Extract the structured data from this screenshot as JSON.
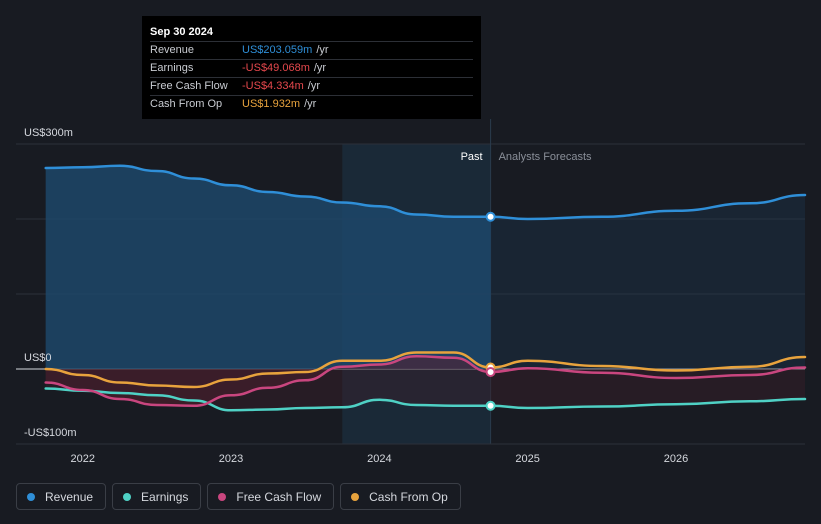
{
  "tooltip": {
    "date": "Sep 30 2024",
    "rows": [
      {
        "label": "Revenue",
        "value": "US$203.059m",
        "unit": "/yr",
        "color": "#2f8fd8"
      },
      {
        "label": "Earnings",
        "value": "-US$49.068m",
        "unit": "/yr",
        "color": "#e5484d"
      },
      {
        "label": "Free Cash Flow",
        "value": "-US$4.334m",
        "unit": "/yr",
        "color": "#e5484d"
      },
      {
        "label": "Cash From Op",
        "value": "US$1.932m",
        "unit": "/yr",
        "color": "#e8a33d"
      }
    ]
  },
  "labels": {
    "past": "Past",
    "forecast": "Analysts Forecasts"
  },
  "legend": [
    {
      "label": "Revenue",
      "color": "#2f8fd8"
    },
    {
      "label": "Earnings",
      "color": "#4fd1c5"
    },
    {
      "label": "Free Cash Flow",
      "color": "#c9467f"
    },
    {
      "label": "Cash From Op",
      "color": "#e8a33d"
    }
  ],
  "chart_data": {
    "type": "line",
    "y_ticks": [
      {
        "value": 300,
        "label": "US$300m"
      },
      {
        "value": 0,
        "label": "US$0"
      },
      {
        "value": -100,
        "label": "-US$100m"
      }
    ],
    "x_ticks": [
      {
        "value": 2022,
        "label": "2022"
      },
      {
        "value": 2023,
        "label": "2023"
      },
      {
        "value": 2024,
        "label": "2024"
      },
      {
        "value": 2025,
        "label": "2025"
      },
      {
        "value": 2026,
        "label": "2026"
      }
    ],
    "xlim": [
      2021.55,
      2026.87
    ],
    "ylim": [
      -100,
      300
    ],
    "divider_x": 2024.75,
    "shade_start_x": 2023.75,
    "series": [
      {
        "name": "Revenue",
        "color": "#2f8fd8",
        "data": [
          [
            2021.75,
            268
          ],
          [
            2022.0,
            269
          ],
          [
            2022.25,
            271
          ],
          [
            2022.5,
            264
          ],
          [
            2022.75,
            254
          ],
          [
            2023.0,
            245
          ],
          [
            2023.25,
            236
          ],
          [
            2023.5,
            230
          ],
          [
            2023.75,
            222
          ],
          [
            2024.0,
            217
          ],
          [
            2024.25,
            206
          ],
          [
            2024.5,
            203
          ],
          [
            2024.75,
            203
          ],
          [
            2025.0,
            200
          ],
          [
            2025.5,
            203
          ],
          [
            2026.0,
            211
          ],
          [
            2026.5,
            221
          ],
          [
            2026.87,
            232
          ]
        ]
      },
      {
        "name": "Earnings",
        "color": "#4fd1c5",
        "data": [
          [
            2021.75,
            -26
          ],
          [
            2022.0,
            -29
          ],
          [
            2022.25,
            -32
          ],
          [
            2022.5,
            -35
          ],
          [
            2022.75,
            -42
          ],
          [
            2023.0,
            -55
          ],
          [
            2023.25,
            -54
          ],
          [
            2023.5,
            -52
          ],
          [
            2023.75,
            -51
          ],
          [
            2024.0,
            -41
          ],
          [
            2024.25,
            -48
          ],
          [
            2024.5,
            -49
          ],
          [
            2024.75,
            -49
          ],
          [
            2025.0,
            -52
          ],
          [
            2025.5,
            -50
          ],
          [
            2026.0,
            -47
          ],
          [
            2026.5,
            -43
          ],
          [
            2026.87,
            -40
          ]
        ]
      },
      {
        "name": "Free Cash Flow",
        "color": "#c9467f",
        "data": [
          [
            2021.75,
            -18
          ],
          [
            2022.0,
            -28
          ],
          [
            2022.25,
            -40
          ],
          [
            2022.5,
            -48
          ],
          [
            2022.75,
            -49
          ],
          [
            2023.0,
            -35
          ],
          [
            2023.25,
            -25
          ],
          [
            2023.5,
            -15
          ],
          [
            2023.75,
            3
          ],
          [
            2024.0,
            6
          ],
          [
            2024.25,
            17
          ],
          [
            2024.5,
            15
          ],
          [
            2024.75,
            -4
          ],
          [
            2025.0,
            1
          ],
          [
            2025.5,
            -5
          ],
          [
            2026.0,
            -12
          ],
          [
            2026.5,
            -8
          ],
          [
            2026.87,
            2
          ]
        ]
      },
      {
        "name": "Cash From Op",
        "color": "#e8a33d",
        "data": [
          [
            2021.75,
            0
          ],
          [
            2022.0,
            -8
          ],
          [
            2022.25,
            -18
          ],
          [
            2022.5,
            -22
          ],
          [
            2022.75,
            -24
          ],
          [
            2023.0,
            -14
          ],
          [
            2023.25,
            -6
          ],
          [
            2023.5,
            -4
          ],
          [
            2023.75,
            11
          ],
          [
            2024.0,
            11
          ],
          [
            2024.25,
            22
          ],
          [
            2024.5,
            22
          ],
          [
            2024.75,
            2
          ],
          [
            2025.0,
            11
          ],
          [
            2025.5,
            4
          ],
          [
            2026.0,
            -2
          ],
          [
            2026.5,
            3
          ],
          [
            2026.87,
            16
          ]
        ]
      }
    ],
    "highlight": [
      {
        "series": "Revenue",
        "x": 2024.75,
        "y": 203
      },
      {
        "series": "Cash From Op",
        "x": 2024.75,
        "y": 2
      },
      {
        "series": "Free Cash Flow",
        "x": 2024.75,
        "y": -4
      },
      {
        "series": "Earnings",
        "x": 2024.75,
        "y": -49
      }
    ]
  }
}
